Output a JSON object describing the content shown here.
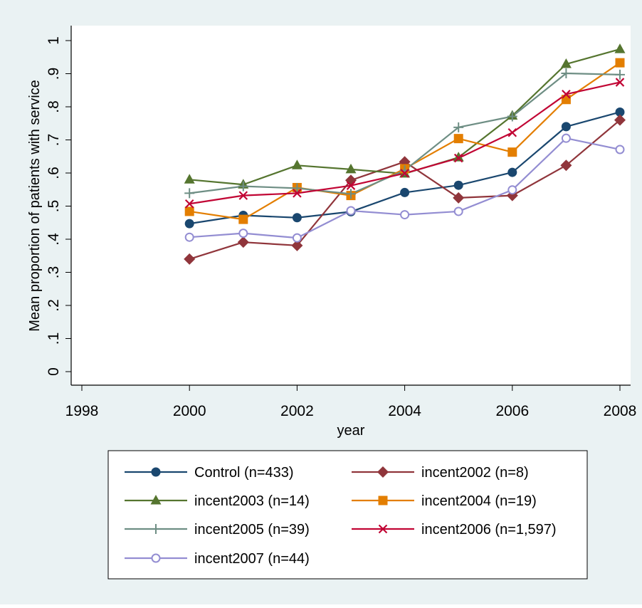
{
  "chart_data": {
    "type": "line",
    "title": "",
    "xlabel": "year",
    "ylabel": "Mean proportion of patients with service",
    "xlim": [
      1998,
      2008
    ],
    "ylim": [
      0,
      1
    ],
    "x_ticks": [
      "1998",
      "2000",
      "2002",
      "2004",
      "2006",
      "2008"
    ],
    "y_ticks": [
      "0",
      ".1",
      ".2",
      ".3",
      ".4",
      ".5",
      ".6",
      ".7",
      ".8",
      ".9",
      "1"
    ],
    "grid": false,
    "legend_position": "bottom",
    "x": [
      2000,
      2001,
      2002,
      2003,
      2004,
      2005,
      2006,
      2007,
      2008
    ],
    "series": [
      {
        "name": "Control (n=433)",
        "color": "#1a476f",
        "marker": "circle",
        "values": [
          0.447,
          0.472,
          0.465,
          0.483,
          0.541,
          0.563,
          0.602,
          0.74,
          0.784
        ]
      },
      {
        "name": "incent2002 (n=8)",
        "color": "#90353b",
        "marker": "diamond",
        "values": [
          0.34,
          0.391,
          0.381,
          0.578,
          0.634,
          0.525,
          0.532,
          0.623,
          0.76
        ]
      },
      {
        "name": "incent2003 (n=14)",
        "color": "#55752f",
        "marker": "triangle",
        "values": [
          0.58,
          0.565,
          0.623,
          0.611,
          0.598,
          0.647,
          0.773,
          0.929,
          0.974
        ]
      },
      {
        "name": "incent2004 (n=19)",
        "color": "#e37e00",
        "marker": "square",
        "values": [
          0.484,
          0.46,
          0.556,
          0.532,
          0.613,
          0.704,
          0.663,
          0.822,
          0.933
        ]
      },
      {
        "name": "incent2005 (n=39)",
        "color": "#6e8e84",
        "marker": "plus",
        "values": [
          0.539,
          0.56,
          0.554,
          0.537,
          0.608,
          0.738,
          0.771,
          0.901,
          0.897
        ]
      },
      {
        "name": "incent2006 (n=1,597)",
        "color": "#c10534",
        "marker": "x",
        "values": [
          0.507,
          0.532,
          0.539,
          0.562,
          0.599,
          0.645,
          0.722,
          0.838,
          0.874
        ]
      },
      {
        "name": "incent2007 (n=44)",
        "color": "#938dd2",
        "marker": "hollow-circle",
        "values": [
          0.406,
          0.418,
          0.404,
          0.486,
          0.474,
          0.484,
          0.549,
          0.705,
          0.671
        ]
      }
    ]
  }
}
